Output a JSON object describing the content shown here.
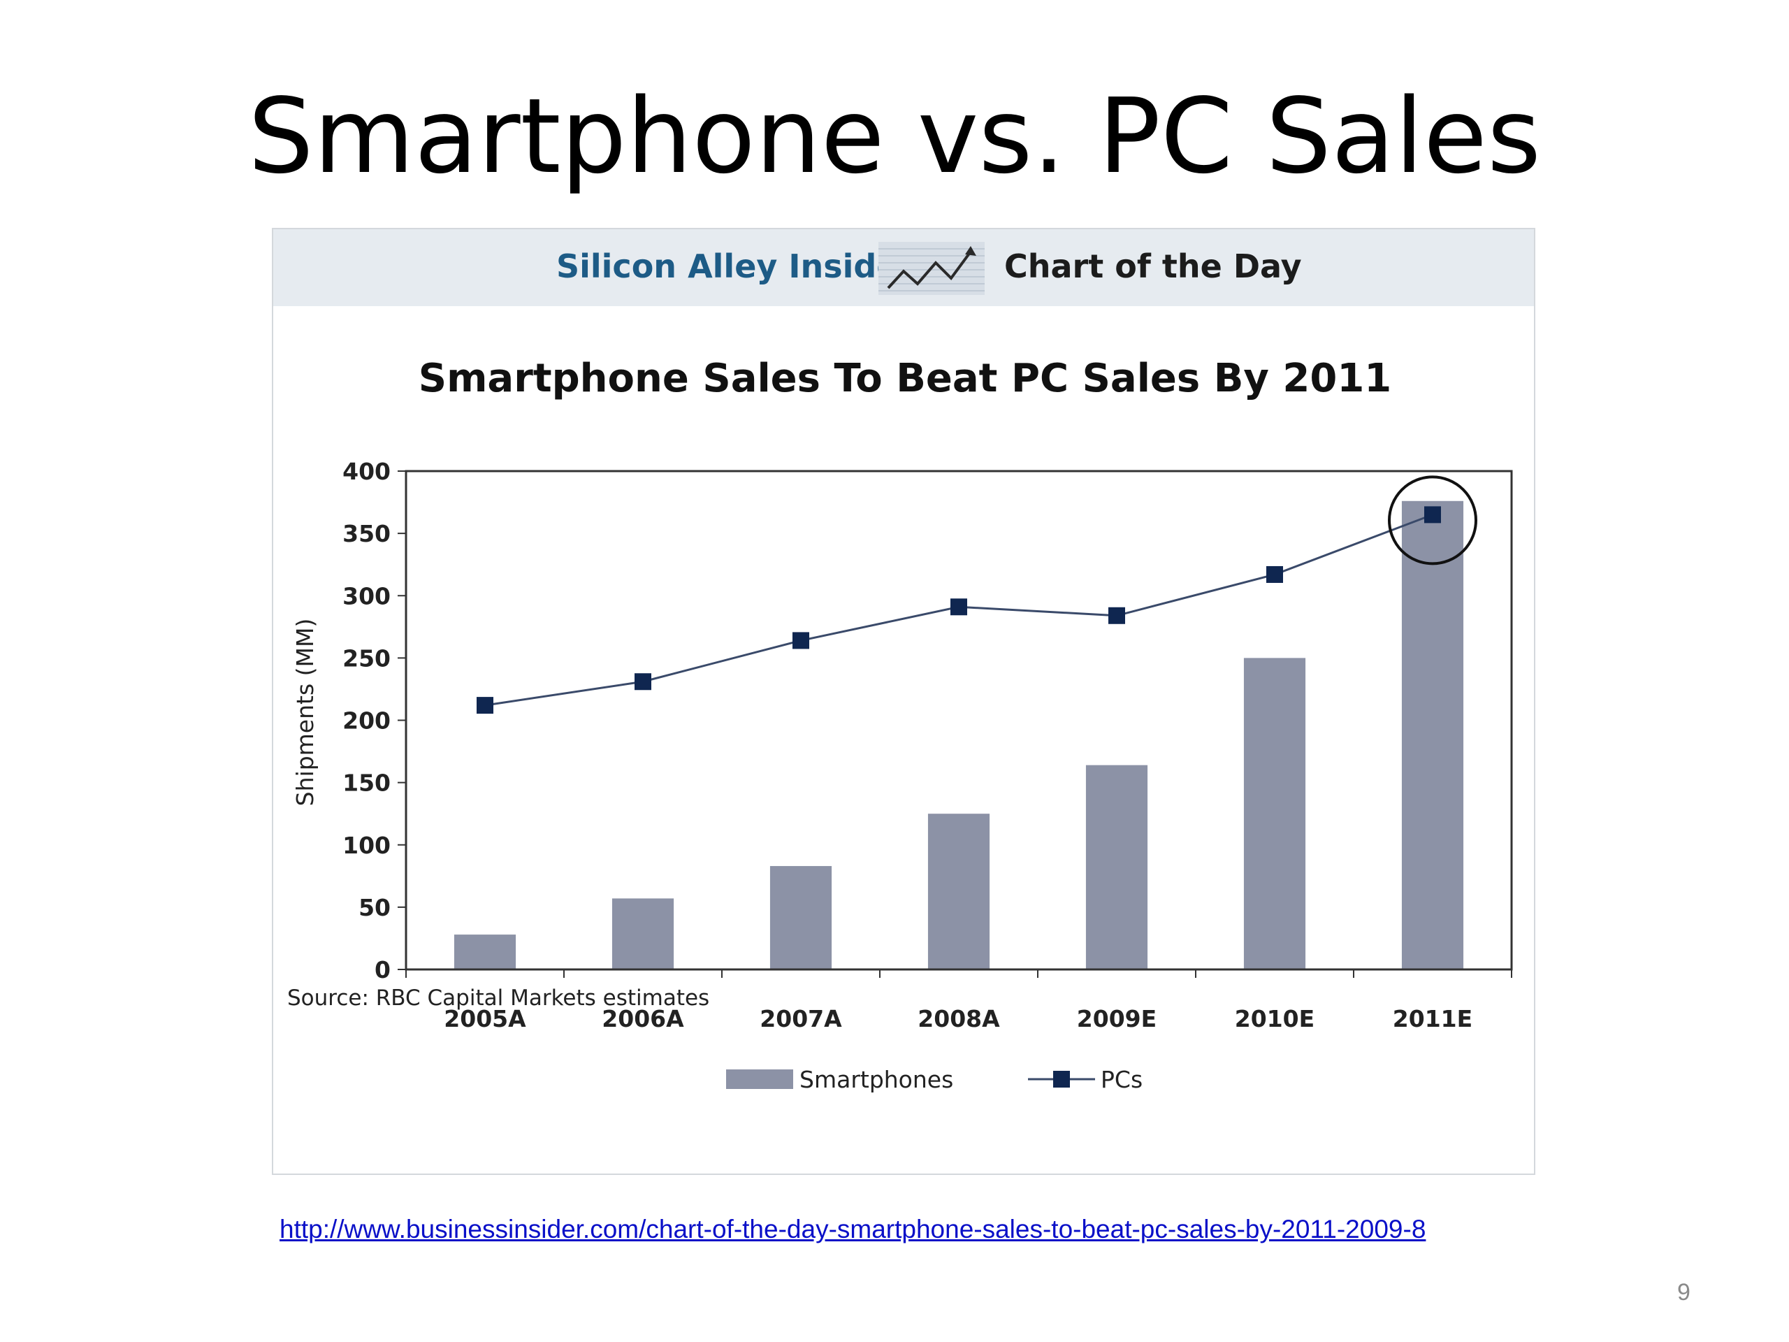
{
  "slide": {
    "title": "Smartphone vs. PC Sales",
    "link": "http://www.businessinsider.com/chart-of-the-day-smartphone-sales-to-beat-pc-sales-by-2011-2009-8",
    "page_number": "9"
  },
  "banner": {
    "brand": "Silicon Alley Insider",
    "label": "Chart of the Day",
    "background": "#e6ebf0",
    "brand_color": "#1d5b86"
  },
  "source": "Source: RBC Capital Markets estimates",
  "chart_data": {
    "type": "bar",
    "title": "Smartphone Sales To Beat PC Sales By 2011",
    "ylabel": "Shipments (MM)",
    "xlabel": "",
    "categories": [
      "2005A",
      "2006A",
      "2007A",
      "2008A",
      "2009E",
      "2010E",
      "2011E"
    ],
    "ylim": [
      0,
      400
    ],
    "yticks": [
      0,
      50,
      100,
      150,
      200,
      250,
      300,
      350,
      400
    ],
    "grid": false,
    "legend": "bottom-center",
    "series": [
      {
        "name": "Smartphones",
        "kind": "bar",
        "color": "#8c92a6",
        "values": [
          28,
          57,
          83,
          125,
          164,
          250,
          376
        ]
      },
      {
        "name": "PCs",
        "kind": "line",
        "marker": "square",
        "color": "#0f2650",
        "values": [
          212,
          231,
          264,
          291,
          284,
          317,
          365
        ]
      }
    ],
    "annotations": [
      {
        "type": "circle",
        "category": "2011E"
      }
    ]
  }
}
